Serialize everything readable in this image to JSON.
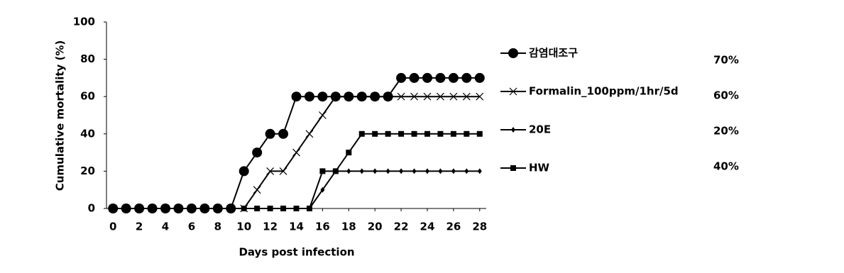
{
  "chart_data": {
    "type": "line",
    "x_label": "Days post infection",
    "y_label": "Cumulative mortality (%)",
    "x": [
      0,
      1,
      2,
      3,
      4,
      5,
      6,
      7,
      8,
      9,
      10,
      11,
      12,
      13,
      14,
      15,
      16,
      17,
      18,
      19,
      20,
      21,
      22,
      23,
      24,
      25,
      26,
      27,
      28
    ],
    "xlim": [
      -0.5,
      28.5
    ],
    "xticks": [
      0,
      2,
      4,
      6,
      8,
      10,
      12,
      14,
      16,
      18,
      20,
      22,
      24,
      26,
      28
    ],
    "ylim": [
      0,
      100
    ],
    "yticks": [
      0,
      20,
      40,
      60,
      80,
      100
    ],
    "grid": false,
    "series": [
      {
        "name": "감염대조구",
        "color": "#000000",
        "marker": "circle",
        "values": [
          0,
          0,
          0,
          0,
          0,
          0,
          0,
          0,
          0,
          0,
          20,
          30,
          40,
          40,
          60,
          60,
          60,
          60,
          60,
          60,
          60,
          60,
          70,
          70,
          70,
          70,
          70,
          70,
          70
        ]
      },
      {
        "name": "Formalin_100ppm/1hr/5d",
        "color": "#000000",
        "marker": "x",
        "values": [
          0,
          0,
          0,
          0,
          0,
          0,
          0,
          0,
          0,
          0,
          0,
          10,
          20,
          20,
          30,
          40,
          50,
          60,
          60,
          60,
          60,
          60,
          60,
          60,
          60,
          60,
          60,
          60,
          60
        ]
      },
      {
        "name": "20E",
        "color": "#000000",
        "marker": "diamond",
        "values": [
          0,
          0,
          0,
          0,
          0,
          0,
          0,
          0,
          0,
          0,
          0,
          0,
          0,
          0,
          0,
          0,
          10,
          20,
          20,
          20,
          20,
          20,
          20,
          20,
          20,
          20,
          20,
          20,
          20
        ]
      },
      {
        "name": "HW",
        "color": "#000000",
        "marker": "square",
        "values": [
          0,
          0,
          0,
          0,
          0,
          0,
          0,
          0,
          0,
          0,
          0,
          0,
          0,
          0,
          0,
          0,
          20,
          20,
          30,
          40,
          40,
          40,
          40,
          40,
          40,
          40,
          40,
          40,
          40
        ]
      }
    ],
    "annotations": [
      "70%",
      "60%",
      "20%",
      "40%"
    ]
  }
}
